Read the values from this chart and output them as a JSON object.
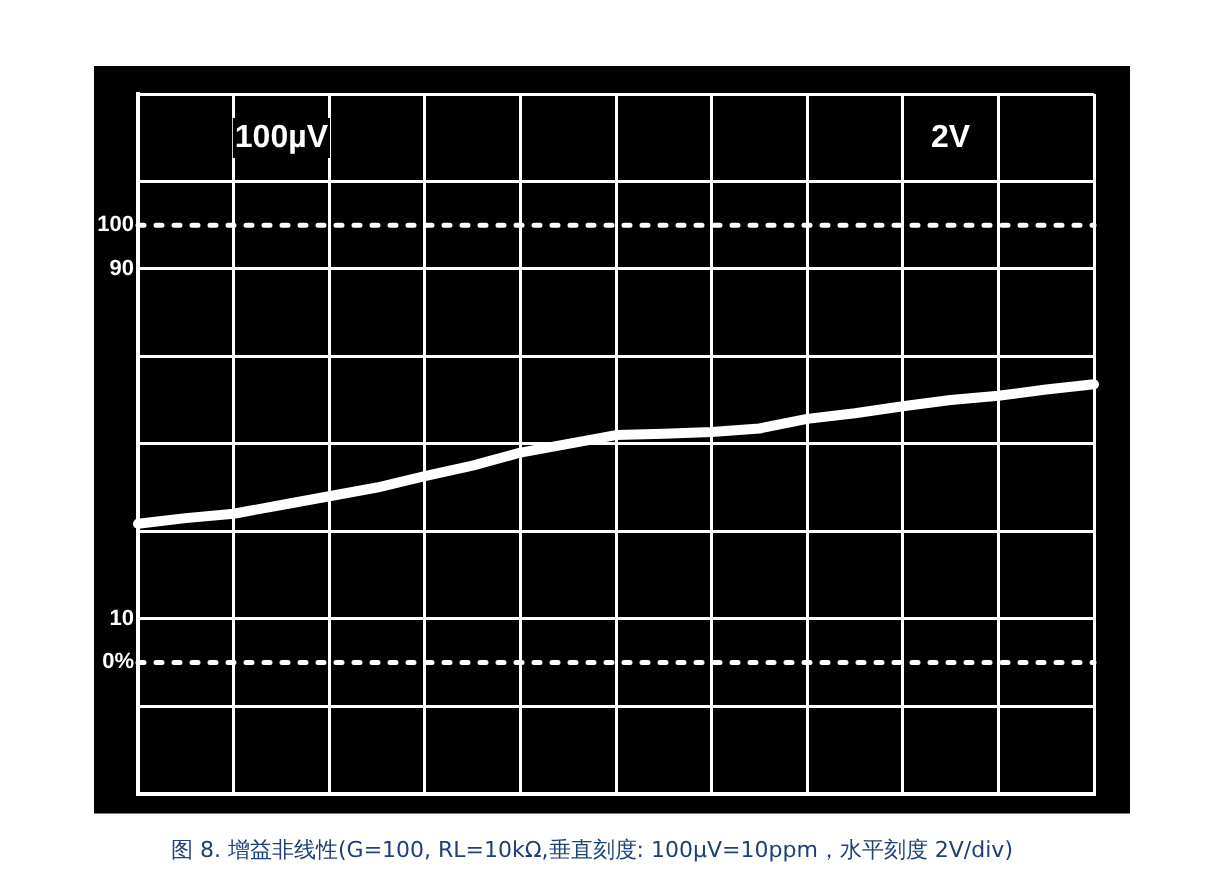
{
  "chart_data": {
    "type": "line",
    "title": "图 8. 增益非线性(G=100, RL=10kΩ,垂直刻度: 100μV=10ppm，水平刻度 2V/div)",
    "annotations": [
      "100µV",
      "2V"
    ],
    "categories": [
      null,
      null,
      null,
      null,
      null,
      null,
      null,
      null,
      null,
      null,
      null,
      null,
      null,
      null,
      null,
      null,
      null,
      null,
      null,
      null,
      null
    ],
    "series": [
      {
        "color": "#ffffff",
        "values": [
          31.7,
          33,
          34,
          36,
          38,
          40,
          42.6,
          45,
          48,
          50,
          52,
          52.3,
          52.7,
          53.5,
          55.7,
          57,
          58.6,
          60,
          61,
          62.4,
          63.6
        ]
      }
    ],
    "ylim": [
      -30,
      130
    ],
    "yticks": [
      {
        "value": -30,
        "label": null
      },
      {
        "value": -10,
        "label": null
      },
      10,
      {
        "value": 30,
        "label": null
      },
      {
        "value": 50,
        "label": null
      },
      {
        "value": 70,
        "label": null
      },
      90,
      {
        "value": 110,
        "label": null
      },
      {
        "value": 130,
        "label": null
      }
    ],
    "ref_lines": [
      {
        "axis": "y",
        "value": 0,
        "label": "0%",
        "color": "#ffffff",
        "line_style": "dotted"
      },
      {
        "axis": "y",
        "value": 100,
        "label": "100",
        "color": "#ffffff",
        "line_style": "dotted"
      }
    ],
    "grid": true,
    "legend": false,
    "marker": "none",
    "line_style": "solid",
    "tick_labels": "y"
  }
}
